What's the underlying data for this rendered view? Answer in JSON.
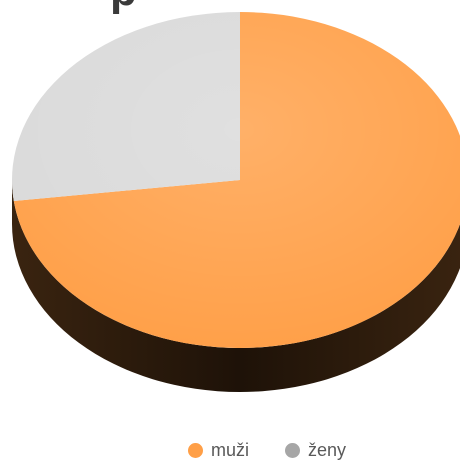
{
  "chart_data": {
    "type": "pie",
    "title_fragment": "p",
    "categories": [
      "muži",
      "ženy"
    ],
    "values": [
      73,
      27
    ],
    "colors": [
      "#FF9F47",
      "#D9D9D9"
    ],
    "legend_position": "bottom",
    "style": "3d"
  }
}
